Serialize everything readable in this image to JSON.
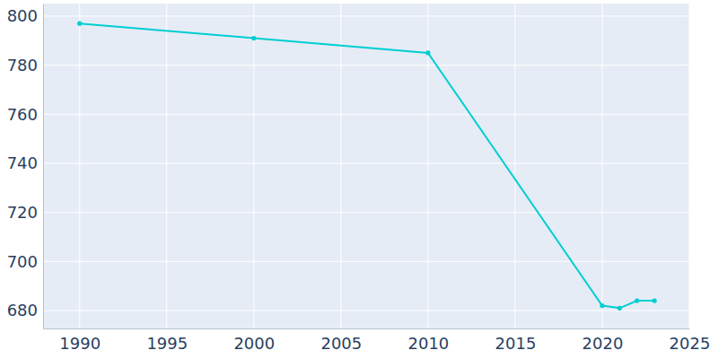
{
  "chart_data": {
    "type": "line",
    "x": [
      1990,
      2000,
      2010,
      2020,
      2021,
      2022,
      2023
    ],
    "values": [
      797,
      791,
      785,
      682,
      681,
      684,
      684
    ],
    "color": "#00ced1",
    "marker": "circle",
    "xlim": [
      1987.9,
      2025
    ],
    "xticks": [
      1990,
      1995,
      2000,
      2005,
      2010,
      2015,
      2020,
      2025
    ],
    "ylim": [
      672.7,
      805.1
    ],
    "yticks": [
      680,
      700,
      720,
      740,
      760,
      780,
      800
    ],
    "grid": true
  }
}
